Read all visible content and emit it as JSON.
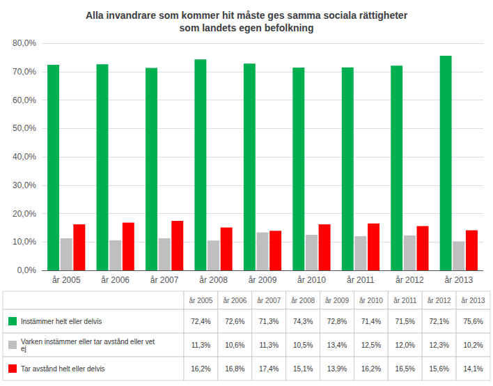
{
  "chart_data": {
    "type": "bar",
    "title": "Alla invandrare som kommer hit måste ges samma sociala rättigheter\nsom landets egen befolkning",
    "categories": [
      "år 2005",
      "år 2006",
      "år 2007",
      "år 2008",
      "år 2009",
      "år 2010",
      "år 2011",
      "år 2012",
      "år 2013"
    ],
    "series": [
      {
        "name": "Instämmer helt eller delvis",
        "color": "#00B050",
        "values": [
          72.4,
          72.6,
          71.3,
          74.3,
          72.8,
          71.4,
          71.5,
          72.1,
          75.6
        ],
        "value_labels": [
          "72,4%",
          "72,6%",
          "71,3%",
          "74,3%",
          "72,8%",
          "71,4%",
          "71,5%",
          "72,1%",
          "75,6%"
        ]
      },
      {
        "name": "Varken instämmer eller tar avstånd eller vet\nej",
        "color": "#BFBFBF",
        "values": [
          11.3,
          10.6,
          11.3,
          10.5,
          13.4,
          12.5,
          12.0,
          12.3,
          10.2
        ],
        "value_labels": [
          "11,3%",
          "10,6%",
          "11,3%",
          "10,5%",
          "13,4%",
          "12,5%",
          "12,0%",
          "12,3%",
          "10,2%"
        ]
      },
      {
        "name": "Tar avstånd helt eller delvis",
        "color": "#FF0000",
        "values": [
          16.2,
          16.8,
          17.4,
          15.1,
          13.9,
          16.2,
          16.5,
          15.6,
          14.1
        ],
        "value_labels": [
          "16,2%",
          "16,8%",
          "17,4%",
          "15,1%",
          "13,9%",
          "16,2%",
          "16,5%",
          "15,6%",
          "14,1%"
        ]
      }
    ],
    "ylim": [
      0,
      80
    ],
    "yticks": [
      {
        "value": 0,
        "label": "0,0%"
      },
      {
        "value": 10,
        "label": "10,0%"
      },
      {
        "value": 20,
        "label": "20,0%"
      },
      {
        "value": 30,
        "label": "30,0%"
      },
      {
        "value": 40,
        "label": "40,0%"
      },
      {
        "value": 50,
        "label": "50,0%"
      },
      {
        "value": 60,
        "label": "60,0%"
      },
      {
        "value": 70,
        "label": "70,0%"
      },
      {
        "value": 80,
        "label": "80,0%"
      }
    ],
    "grid": true
  }
}
